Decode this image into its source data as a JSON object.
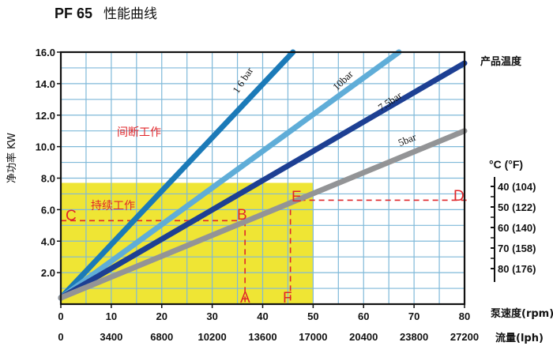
{
  "title": {
    "main": "PF 65",
    "sub": "性能曲线"
  },
  "chart_data": {
    "type": "line",
    "ylabel": "净功率 KW",
    "xlim": [
      0,
      80
    ],
    "ylim": [
      0,
      16
    ],
    "y_ticks": [
      "16.0",
      "14.0",
      "12.0",
      "10.0",
      "8.0",
      "6.0",
      "4.0",
      "2.0"
    ],
    "x_ticks_rpm": [
      "0",
      "10",
      "20",
      "30",
      "40",
      "50",
      "60",
      "70",
      "80"
    ],
    "x_ticks_lph": [
      "0",
      "3400",
      "6800",
      "10200",
      "13600",
      "17000",
      "20400",
      "23800",
      "27200"
    ],
    "x_axis_names": {
      "rpm": "泵速度(rpm)",
      "lph": "流量(lph)"
    },
    "grid": true,
    "series": [
      {
        "name": "1 6 bar",
        "color": "#1b7ab8",
        "points": [
          [
            0,
            0.4
          ],
          [
            46,
            16.0
          ]
        ]
      },
      {
        "name": "10bar",
        "color": "#5fadd8",
        "points": [
          [
            0,
            0.4
          ],
          [
            67,
            16.0
          ]
        ]
      },
      {
        "name": "7.5bar",
        "color": "#1d3f93",
        "points": [
          [
            0,
            0.4
          ],
          [
            80,
            15.3
          ]
        ]
      },
      {
        "name": "5bar",
        "color": "#939496",
        "points": [
          [
            0,
            0.4
          ],
          [
            80,
            11.0
          ]
        ]
      }
    ],
    "regions": [
      {
        "label": "持续工作",
        "x": [
          0,
          50
        ],
        "y": [
          0,
          7.7
        ],
        "color": "#efe534"
      },
      {
        "label": "间断工作",
        "x": [
          0,
          80
        ],
        "y": [
          0,
          16
        ],
        "color": "#ffffff"
      }
    ],
    "annotations": [
      {
        "label": "A",
        "x": 36.5,
        "y": 0
      },
      {
        "label": "B",
        "x": 36.5,
        "y": 5.3
      },
      {
        "label": "C",
        "x": 0,
        "y": 5.3
      },
      {
        "label": "D",
        "x": 80,
        "y": 6.6
      },
      {
        "label": "E",
        "x": 45.5,
        "y": 6.6
      },
      {
        "label": "F",
        "x": 45.5,
        "y": 0
      }
    ],
    "annotation_color": "#e0262a",
    "temperature_scale": {
      "title": "产品温度",
      "header": "°C     (°F)",
      "items": [
        "40 (104)",
        "50 (122)",
        "60 (140)",
        "70 (158)",
        "80 (176)"
      ]
    }
  }
}
